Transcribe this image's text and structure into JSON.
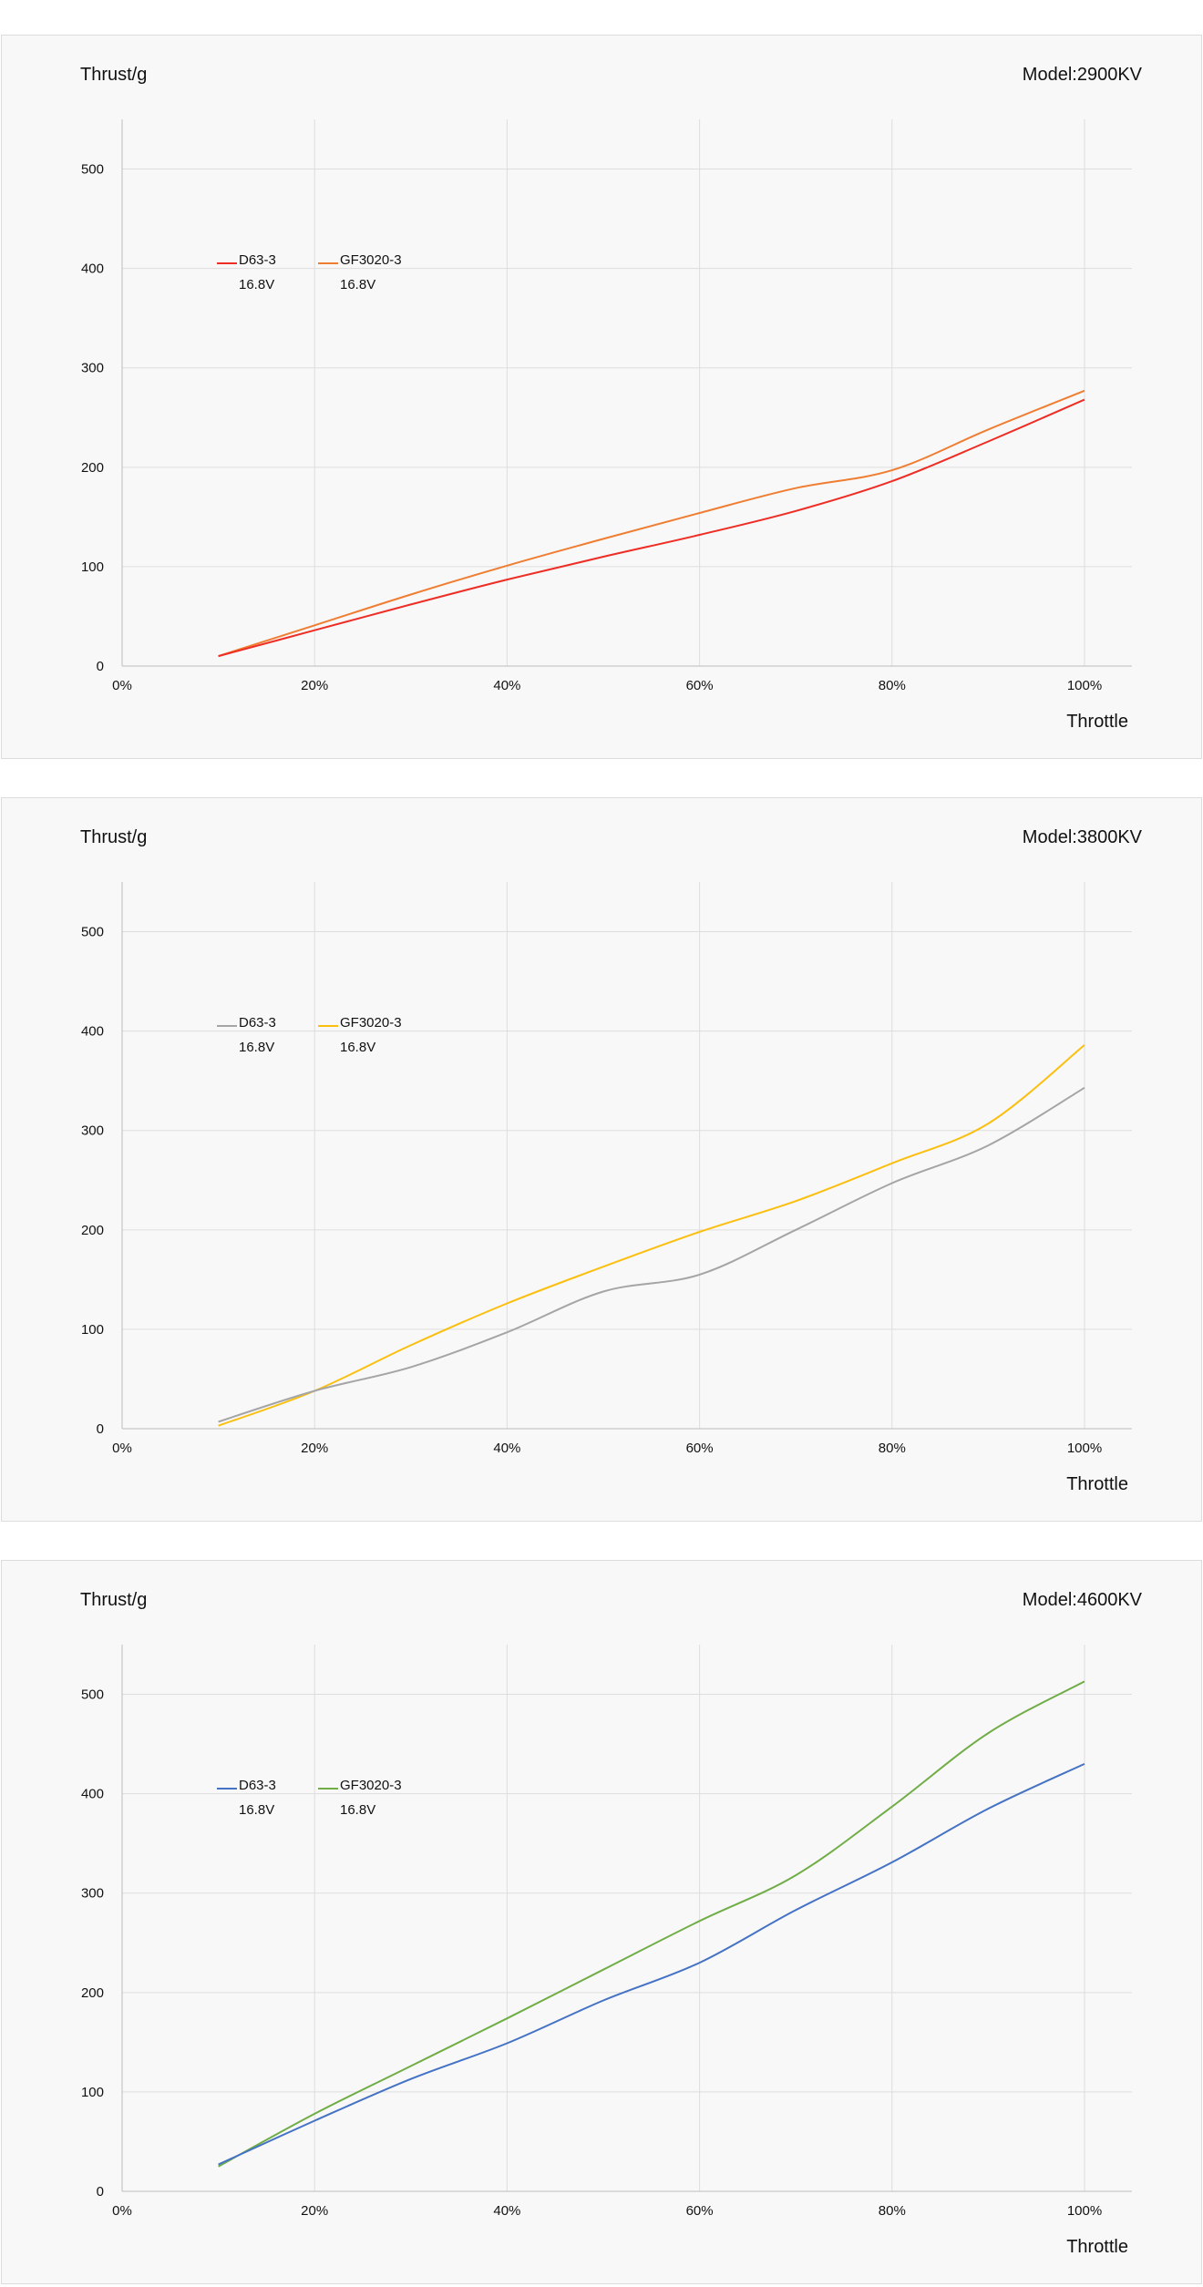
{
  "chart_data": [
    {
      "type": "line",
      "ylabel": "Thrust/g",
      "title": "Model:2900KV",
      "xlabel": "Throttle",
      "x": [
        0.1,
        0.2,
        0.3,
        0.4,
        0.5,
        0.6,
        0.7,
        0.8,
        0.9,
        1.0
      ],
      "x_ticks": [
        "0%",
        "20%",
        "40%",
        "60%",
        "80%",
        "100%"
      ],
      "y_ticks": [
        "0",
        "100",
        "200",
        "300",
        "400",
        "500"
      ],
      "ylim": [
        0,
        550
      ],
      "xlim": [
        0,
        1.05
      ],
      "grid": true,
      "legend_position": "upper-left inside plot",
      "series": [
        {
          "name": "D63-3",
          "sub": "16.8V",
          "color": "#ee2d24",
          "values": [
            10,
            36,
            62,
            87,
            110,
            132,
            156,
            186,
            226,
            268
          ]
        },
        {
          "name": "GF3020-3",
          "sub": "16.8V",
          "color": "#ef7d32",
          "values": [
            10,
            41,
            72,
            101,
            128,
            154,
            179,
            197,
            238,
            277
          ]
        }
      ]
    },
    {
      "type": "line",
      "ylabel": "Thrust/g",
      "title": "Model:3800KV",
      "xlabel": "Throttle",
      "x": [
        0.1,
        0.2,
        0.3,
        0.4,
        0.5,
        0.6,
        0.7,
        0.8,
        0.9,
        1.0
      ],
      "x_ticks": [
        "0%",
        "20%",
        "40%",
        "60%",
        "80%",
        "100%"
      ],
      "y_ticks": [
        "0",
        "100",
        "200",
        "300",
        "400",
        "500"
      ],
      "ylim": [
        0,
        550
      ],
      "xlim": [
        0,
        1.05
      ],
      "grid": true,
      "legend_position": "upper-left inside plot",
      "series": [
        {
          "name": "D63-3",
          "sub": "16.8V",
          "color": "#a5a5a5",
          "values": [
            7,
            38,
            62,
            97,
            138,
            155,
            200,
            247,
            285,
            343
          ]
        },
        {
          "name": "GF3020-3",
          "sub": "16.8V",
          "color": "#fbbf10",
          "values": [
            3,
            38,
            84,
            126,
            163,
            198,
            229,
            267,
            307,
            386
          ]
        }
      ]
    },
    {
      "type": "line",
      "ylabel": "Thrust/g",
      "title": "Model:4600KV",
      "xlabel": "Throttle",
      "x": [
        0.1,
        0.2,
        0.3,
        0.4,
        0.5,
        0.6,
        0.7,
        0.8,
        0.9,
        1.0
      ],
      "x_ticks": [
        "0%",
        "20%",
        "40%",
        "60%",
        "80%",
        "100%"
      ],
      "y_ticks": [
        "0",
        "100",
        "200",
        "300",
        "400",
        "500"
      ],
      "ylim": [
        0,
        550
      ],
      "xlim": [
        0,
        1.05
      ],
      "grid": true,
      "legend_position": "upper-left inside plot",
      "series": [
        {
          "name": "D63-3",
          "sub": "16.8V",
          "color": "#4472c4",
          "values": [
            27,
            71,
            113,
            149,
            192,
            230,
            283,
            331,
            385,
            430
          ]
        },
        {
          "name": "GF3020-3",
          "sub": "16.8V",
          "color": "#70ad47",
          "values": [
            25,
            78,
            126,
            174,
            223,
            272,
            318,
            387,
            461,
            513
          ]
        }
      ]
    }
  ]
}
